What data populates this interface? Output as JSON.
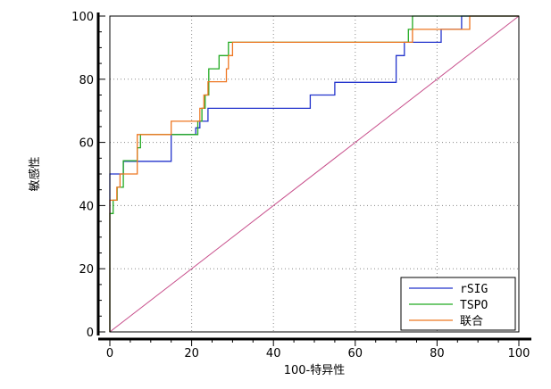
{
  "chart_data": {
    "type": "line",
    "xlabel": "100-特异性",
    "ylabel": "敏感性",
    "xlim": [
      0,
      100
    ],
    "ylim": [
      0,
      100
    ],
    "x_ticks": [
      0,
      20,
      40,
      60,
      80,
      100
    ],
    "y_ticks": [
      0,
      20,
      40,
      60,
      80,
      100
    ],
    "grid": true,
    "legend_position": "bottom-right",
    "reference_line": {
      "color": "#c8508c",
      "points": [
        [
          0,
          0
        ],
        [
          100,
          100
        ]
      ]
    },
    "series": [
      {
        "name": "rSIG",
        "color": "#2233cc",
        "points": [
          [
            0,
            0
          ],
          [
            0,
            50
          ],
          [
            3.3,
            50
          ],
          [
            3.3,
            54
          ],
          [
            15,
            54
          ],
          [
            15,
            62.5
          ],
          [
            21,
            62.5
          ],
          [
            21,
            64.6
          ],
          [
            22,
            64.6
          ],
          [
            22,
            66.7
          ],
          [
            24,
            66.7
          ],
          [
            24,
            70.8
          ],
          [
            49,
            70.8
          ],
          [
            49,
            75
          ],
          [
            55,
            75
          ],
          [
            55,
            79
          ],
          [
            70,
            79
          ],
          [
            70,
            87.5
          ],
          [
            72,
            87.5
          ],
          [
            72,
            91.7
          ],
          [
            81,
            91.7
          ],
          [
            81,
            95.8
          ],
          [
            86,
            95.8
          ],
          [
            86,
            100
          ],
          [
            100,
            100
          ]
        ]
      },
      {
        "name": "TSPO",
        "color": "#22aa22",
        "points": [
          [
            0,
            0
          ],
          [
            0,
            37.5
          ],
          [
            0.8,
            37.5
          ],
          [
            0.8,
            41.7
          ],
          [
            1.8,
            41.7
          ],
          [
            1.8,
            45.8
          ],
          [
            3.3,
            45.8
          ],
          [
            3.3,
            54.2
          ],
          [
            6.7,
            54.2
          ],
          [
            6.7,
            58.3
          ],
          [
            7.5,
            58.3
          ],
          [
            7.5,
            62.5
          ],
          [
            21.5,
            62.5
          ],
          [
            21.5,
            66.7
          ],
          [
            22.5,
            66.7
          ],
          [
            22.5,
            70.8
          ],
          [
            23.3,
            70.8
          ],
          [
            23.3,
            75
          ],
          [
            24.2,
            75
          ],
          [
            24.2,
            83.3
          ],
          [
            26.7,
            83.3
          ],
          [
            26.7,
            87.5
          ],
          [
            29,
            87.5
          ],
          [
            29,
            91.7
          ],
          [
            73,
            91.7
          ],
          [
            73,
            95.8
          ],
          [
            74,
            95.8
          ],
          [
            74,
            100
          ],
          [
            100,
            100
          ]
        ]
      },
      {
        "name": "联合",
        "color": "#ee7722",
        "points": [
          [
            0,
            0
          ],
          [
            0,
            41.7
          ],
          [
            1.7,
            41.7
          ],
          [
            1.7,
            45.8
          ],
          [
            2.5,
            45.8
          ],
          [
            2.5,
            50
          ],
          [
            6.7,
            50
          ],
          [
            6.7,
            62.5
          ],
          [
            15,
            62.5
          ],
          [
            15,
            66.7
          ],
          [
            22,
            66.7
          ],
          [
            22,
            70.8
          ],
          [
            23,
            70.8
          ],
          [
            23,
            75
          ],
          [
            24,
            75
          ],
          [
            24,
            79.2
          ],
          [
            28.5,
            79.2
          ],
          [
            28.5,
            83.3
          ],
          [
            29,
            83.3
          ],
          [
            29,
            87.5
          ],
          [
            30,
            87.5
          ],
          [
            30,
            91.7
          ],
          [
            74,
            91.7
          ],
          [
            74,
            95.8
          ],
          [
            88,
            95.8
          ],
          [
            88,
            100
          ],
          [
            100,
            100
          ]
        ]
      }
    ]
  }
}
